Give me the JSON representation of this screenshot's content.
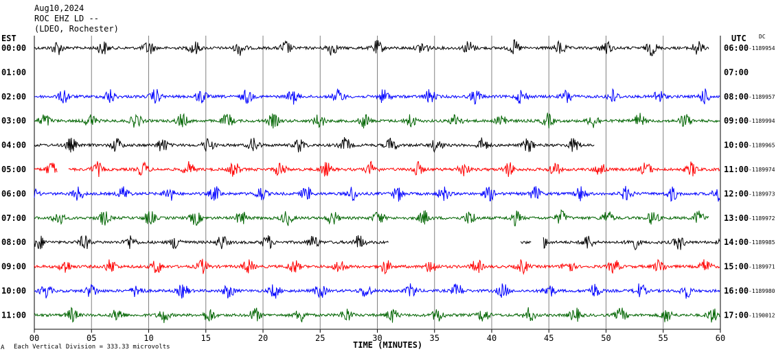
{
  "header": {
    "line1": "Aug10,2024",
    "line2": "ROC EHZ LD --",
    "line3": "(LDEO, Rochester)"
  },
  "left_tz": "EST",
  "right_tz": "UTC",
  "dc_label": "DC",
  "footer": {
    "division_note": "Each Vertical Division =  333.33 microvolts",
    "corner_mark": "A"
  },
  "chart_data": {
    "type": "line",
    "title": "",
    "xlabel": "TIME (MINUTES)",
    "ylabel": "",
    "xlim": [
      0,
      60
    ],
    "x_ticks": [
      "00",
      "05",
      "10",
      "15",
      "20",
      "25",
      "30",
      "35",
      "40",
      "45",
      "50",
      "55",
      "60"
    ],
    "rows": [
      {
        "est": "00:00",
        "utc": "06:00",
        "dc": "-1189954",
        "color": "#000000",
        "data_start": 0,
        "data_end": 59,
        "gaps": []
      },
      {
        "est": "01:00",
        "utc": "07:00",
        "dc": "",
        "color": "#000000",
        "data_start": 0,
        "data_end": 0,
        "gaps": []
      },
      {
        "est": "02:00",
        "utc": "08:00",
        "dc": "-1189957",
        "color": "#0000ff",
        "data_start": 0,
        "data_end": 60,
        "gaps": []
      },
      {
        "est": "03:00",
        "utc": "09:00",
        "dc": "-1189994",
        "color": "#006400",
        "data_start": 0,
        "data_end": 60,
        "gaps": []
      },
      {
        "est": "04:00",
        "utc": "10:00",
        "dc": "-1189965",
        "color": "#000000",
        "data_start": 0,
        "data_end": 49,
        "gaps": []
      },
      {
        "est": "05:00",
        "utc": "11:00",
        "dc": "-1189974",
        "color": "#ff0000",
        "data_start": 0,
        "data_end": 60,
        "gaps": [
          [
            2,
            3
          ]
        ]
      },
      {
        "est": "06:00",
        "utc": "12:00",
        "dc": "-1189973",
        "color": "#0000ff",
        "data_start": 0,
        "data_end": 60,
        "gaps": []
      },
      {
        "est": "07:00",
        "utc": "13:00",
        "dc": "-1189972",
        "color": "#006400",
        "data_start": 0,
        "data_end": 59,
        "gaps": []
      },
      {
        "est": "08:00",
        "utc": "14:00",
        "dc": "-1189985",
        "color": "#000000",
        "data_start": 0,
        "data_end": 60,
        "gaps": [
          [
            31,
            42.5
          ],
          [
            43.5,
            44.5
          ]
        ]
      },
      {
        "est": "09:00",
        "utc": "15:00",
        "dc": "-1189971",
        "color": "#ff0000",
        "data_start": 0,
        "data_end": 60,
        "gaps": []
      },
      {
        "est": "10:00",
        "utc": "16:00",
        "dc": "-1189980",
        "color": "#0000ff",
        "data_start": 0,
        "data_end": 60,
        "gaps": []
      },
      {
        "est": "11:00",
        "utc": "17:00",
        "dc": "-1190012",
        "color": "#006400",
        "data_start": 0,
        "data_end": 60,
        "gaps": []
      }
    ]
  }
}
